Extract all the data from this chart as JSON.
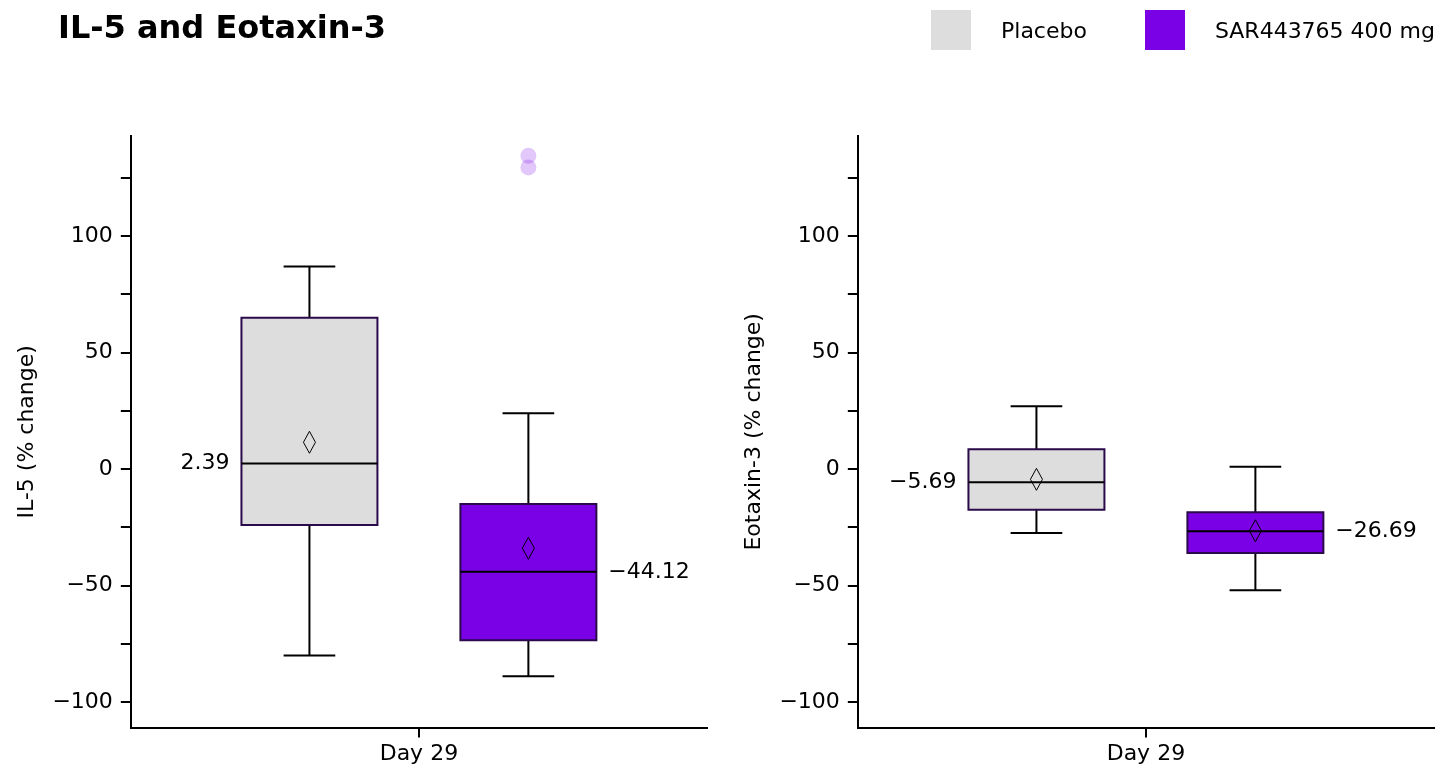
{
  "chart_data": [
    {
      "type": "box",
      "title": "IL-5 and Eotaxin-3",
      "ylabel": "IL-5 (% change)",
      "categories": [
        "Day 29"
      ],
      "legend": "top right",
      "ylim": [
        -111,
        143
      ],
      "yticks": [
        {
          "value": -100,
          "label": "−100"
        },
        {
          "value": -75,
          "label": null
        },
        {
          "value": -50,
          "label": "−50"
        },
        {
          "value": -25,
          "label": null
        },
        0,
        {
          "value": 25,
          "label": null
        },
        50,
        {
          "value": 75,
          "label": null
        },
        100,
        {
          "value": 125,
          "label": null
        }
      ],
      "series": [
        {
          "name": "Placebo",
          "color": "#dddddd",
          "value_labels": [
            "2.39"
          ],
          "boxes": [
            {
              "low": -80,
              "q1": -24,
              "median": 2.39,
              "q3": 65,
              "high": 87,
              "mean": 11.5
            }
          ]
        },
        {
          "name": "SAR443765 400 mg",
          "color": "#7a00e6",
          "value_labels": [
            "−44.12"
          ],
          "boxes": [
            {
              "low": -89,
              "q1": -73.5,
              "median": -44.12,
              "q3": -15,
              "high": 24,
              "mean": -34,
              "outliers": [
                134.5,
                129.5
              ]
            }
          ]
        }
      ]
    },
    {
      "type": "box",
      "ylabel": "Eotaxin-3 (% change)",
      "categories": [
        "Day 29"
      ],
      "ylim": [
        -111,
        143
      ],
      "yticks": [
        {
          "value": -100,
          "label": "−100"
        },
        {
          "value": -75,
          "label": null
        },
        {
          "value": -50,
          "label": "−50"
        },
        {
          "value": -25,
          "label": null
        },
        0,
        {
          "value": 25,
          "label": null
        },
        50,
        {
          "value": 75,
          "label": null
        },
        100,
        {
          "value": 125,
          "label": null
        }
      ],
      "series": [
        {
          "color": "#dddddd",
          "value_labels": [
            "−5.69"
          ],
          "boxes": [
            {
              "low": -27.5,
              "q1": -17.5,
              "median": -5.69,
              "q3": 8.5,
              "high": 27,
              "mean": -4.4
            }
          ]
        },
        {
          "color": "#7a00e6",
          "value_labels": [
            "−26.69"
          ],
          "boxes": [
            {
              "low": -52,
              "q1": -36,
              "median": -26.69,
              "q3": -18.5,
              "high": 1,
              "mean": -26.5
            }
          ]
        }
      ]
    }
  ]
}
